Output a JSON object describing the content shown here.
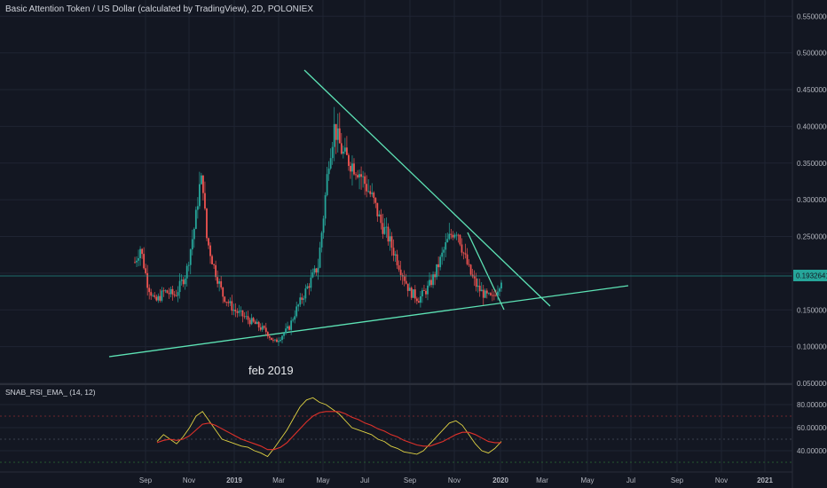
{
  "header": {
    "title": "Basic Attention Token / US Dollar (calculated by TradingView), 2D, POLONIEX"
  },
  "indicator": {
    "title": "SNAB_RSI_EMA_ (14, 12)"
  },
  "annotation": {
    "text": "feb 2019"
  },
  "colors": {
    "background": "#131722",
    "up": "#26a69a",
    "down": "#ef5350",
    "trendline": "#5de3b5",
    "rsi": "#e0d343",
    "ema": "#e0312a",
    "level_high": "#8e2b30",
    "level_low": "#2b6e33"
  },
  "chart_data": [
    {
      "type": "candlestick",
      "title": "Basic Attention Token / US Dollar (calculated by TradingView), 2D, POLONIEX",
      "xlabel": "",
      "ylabel": "",
      "ylim": [
        0.05,
        0.56
      ],
      "y_ticks": [
        "0.05000000",
        "0.10000000",
        "0.15000000",
        "0.20000000",
        "0.25000000",
        "0.30000000",
        "0.35000000",
        "0.40000000",
        "0.45000000",
        "0.50000000",
        "0.55000000"
      ],
      "x_ticks": [
        "Sep",
        "Nov",
        "2019",
        "Mar",
        "May",
        "Jul",
        "Sep",
        "Nov",
        "2020",
        "Mar",
        "May",
        "Jul",
        "Sep",
        "Nov",
        "2021"
      ],
      "last_price": "0.19326414",
      "series": [
        {
          "name": "",
          "points": [
            {
              "t": 0.0,
              "v": 0.215
            },
            {
              "t": 0.015,
              "v": 0.235
            },
            {
              "t": 0.035,
              "v": 0.185
            },
            {
              "t": 0.055,
              "v": 0.16
            },
            {
              "t": 0.08,
              "v": 0.175
            },
            {
              "t": 0.11,
              "v": 0.17
            },
            {
              "t": 0.14,
              "v": 0.2
            },
            {
              "t": 0.165,
              "v": 0.27
            },
            {
              "t": 0.175,
              "v": 0.315
            },
            {
              "t": 0.185,
              "v": 0.33
            },
            {
              "t": 0.195,
              "v": 0.25
            },
            {
              "t": 0.215,
              "v": 0.21
            },
            {
              "t": 0.24,
              "v": 0.17
            },
            {
              "t": 0.27,
              "v": 0.15
            },
            {
              "t": 0.3,
              "v": 0.14
            },
            {
              "t": 0.33,
              "v": 0.13
            },
            {
              "t": 0.36,
              "v": 0.12
            },
            {
              "t": 0.38,
              "v": 0.105
            },
            {
              "t": 0.4,
              "v": 0.115
            },
            {
              "t": 0.42,
              "v": 0.125
            },
            {
              "t": 0.44,
              "v": 0.15
            },
            {
              "t": 0.46,
              "v": 0.17
            },
            {
              "t": 0.48,
              "v": 0.19
            },
            {
              "t": 0.5,
              "v": 0.21
            },
            {
              "t": 0.515,
              "v": 0.28
            },
            {
              "t": 0.53,
              "v": 0.36
            },
            {
              "t": 0.545,
              "v": 0.4
            },
            {
              "t": 0.555,
              "v": 0.38
            },
            {
              "t": 0.57,
              "v": 0.36
            },
            {
              "t": 0.59,
              "v": 0.35
            },
            {
              "t": 0.61,
              "v": 0.34
            },
            {
              "t": 0.63,
              "v": 0.32
            },
            {
              "t": 0.65,
              "v": 0.3
            },
            {
              "t": 0.67,
              "v": 0.27
            },
            {
              "t": 0.69,
              "v": 0.25
            },
            {
              "t": 0.71,
              "v": 0.225
            },
            {
              "t": 0.73,
              "v": 0.2
            },
            {
              "t": 0.75,
              "v": 0.175
            },
            {
              "t": 0.775,
              "v": 0.165
            },
            {
              "t": 0.8,
              "v": 0.18
            },
            {
              "t": 0.82,
              "v": 0.2
            },
            {
              "t": 0.835,
              "v": 0.22
            },
            {
              "t": 0.85,
              "v": 0.24
            },
            {
              "t": 0.865,
              "v": 0.255
            },
            {
              "t": 0.88,
              "v": 0.26
            },
            {
              "t": 0.895,
              "v": 0.23
            },
            {
              "t": 0.915,
              "v": 0.2
            },
            {
              "t": 0.935,
              "v": 0.18
            },
            {
              "t": 0.955,
              "v": 0.17
            },
            {
              "t": 0.975,
              "v": 0.165
            },
            {
              "t": 0.99,
              "v": 0.18
            },
            {
              "t": 1.0,
              "v": 0.193
            }
          ]
        }
      ]
    },
    {
      "type": "line",
      "title": "SNAB_RSI_EMA_ (14, 12)",
      "xlabel": "",
      "ylabel": "",
      "y_ticks": [
        "40.00000000",
        "60.00000000",
        "80.00000000"
      ],
      "levels": [
        70,
        50,
        30
      ],
      "series": [
        {
          "name": "",
          "values": [
            48,
            54,
            50,
            46,
            52,
            60,
            70,
            74,
            66,
            58,
            50,
            48,
            46,
            44,
            43,
            40,
            38,
            35,
            42,
            50,
            58,
            68,
            78,
            84,
            86,
            82,
            80,
            76,
            72,
            66,
            60,
            58,
            56,
            54,
            50,
            48,
            44,
            42,
            39,
            38,
            37,
            40,
            46,
            52,
            58,
            64,
            66,
            62,
            54,
            46,
            40,
            38,
            42,
            48
          ]
        },
        {
          "name": "",
          "values": [
            47,
            49,
            50,
            49,
            50,
            53,
            58,
            63,
            64,
            62,
            59,
            56,
            53,
            50,
            48,
            46,
            44,
            41,
            41,
            43,
            47,
            53,
            59,
            65,
            70,
            73,
            74,
            74,
            74,
            72,
            69,
            67,
            64,
            62,
            59,
            57,
            54,
            52,
            49,
            47,
            45,
            44,
            44,
            46,
            48,
            51,
            54,
            56,
            56,
            54,
            51,
            48,
            47,
            47
          ]
        }
      ]
    }
  ]
}
